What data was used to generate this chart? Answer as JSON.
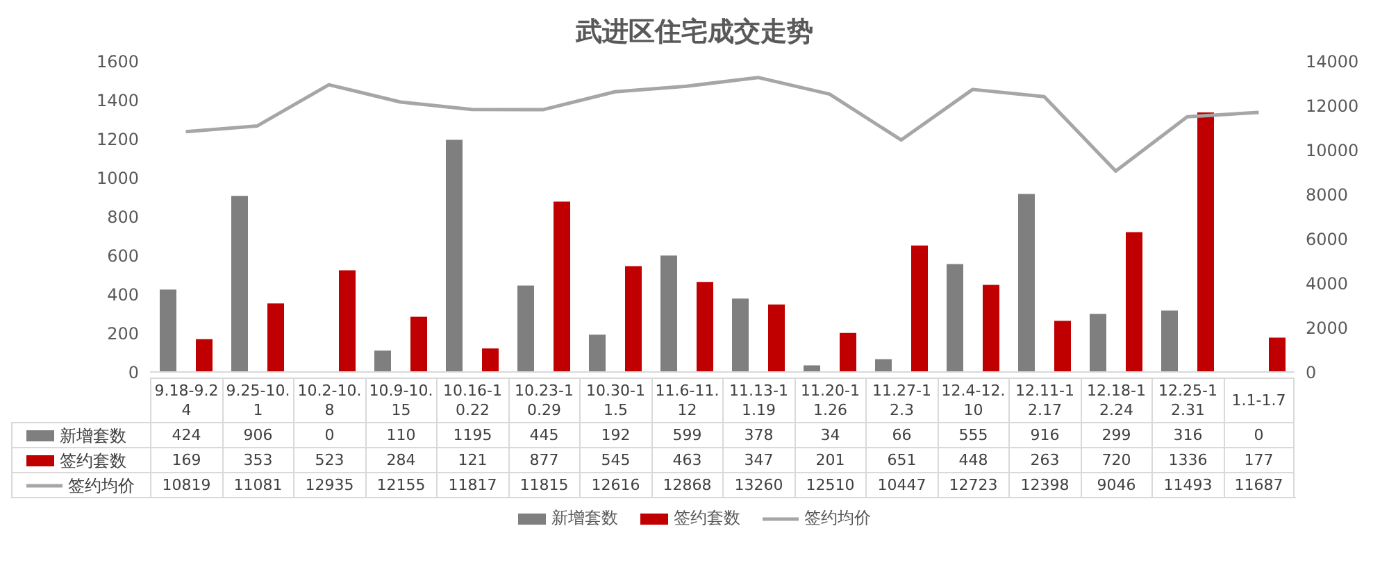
{
  "chart_data": {
    "type": "bar",
    "title": "武进区住宅成交走势",
    "categories": [
      "9.18-9.24",
      "9.25-10.1",
      "10.2-10.8",
      "10.9-10.15",
      "10.16-10.22",
      "10.23-10.29",
      "10.30-11.5",
      "11.6-11.12",
      "11.13-11.19",
      "11.20-11.26",
      "11.27-12.3",
      "12.4-12.10",
      "12.11-12.17",
      "12.18-12.24",
      "12.25-12.31",
      "1.1-1.7"
    ],
    "series": [
      {
        "name": "新增套数",
        "color": "#7f7f7f",
        "values": [
          424,
          906,
          0,
          110,
          1195,
          445,
          192,
          599,
          378,
          34,
          66,
          555,
          916,
          299,
          316,
          0
        ]
      },
      {
        "name": "签约套数",
        "color": "#c00000",
        "values": [
          169,
          353,
          523,
          284,
          121,
          877,
          545,
          463,
          347,
          201,
          651,
          448,
          263,
          720,
          1336,
          177
        ]
      },
      {
        "name": "签约均价",
        "type": "line",
        "axis": "y2",
        "color": "#a6a6a6",
        "values": [
          10819,
          11081,
          12935,
          12155,
          11817,
          11815,
          12616,
          12868,
          13260,
          12510,
          10447,
          12723,
          12398,
          9046,
          11493,
          11687
        ]
      }
    ],
    "ylim": [
      0,
      1600
    ],
    "yticks": [
      0,
      200,
      400,
      600,
      800,
      1000,
      1200,
      1400,
      1600
    ],
    "y2lim": [
      0,
      14000
    ],
    "y2ticks": [
      0,
      2000,
      4000,
      6000,
      8000,
      10000,
      12000,
      14000
    ],
    "data_labels": true,
    "legend": "bottom",
    "marker": "none"
  }
}
